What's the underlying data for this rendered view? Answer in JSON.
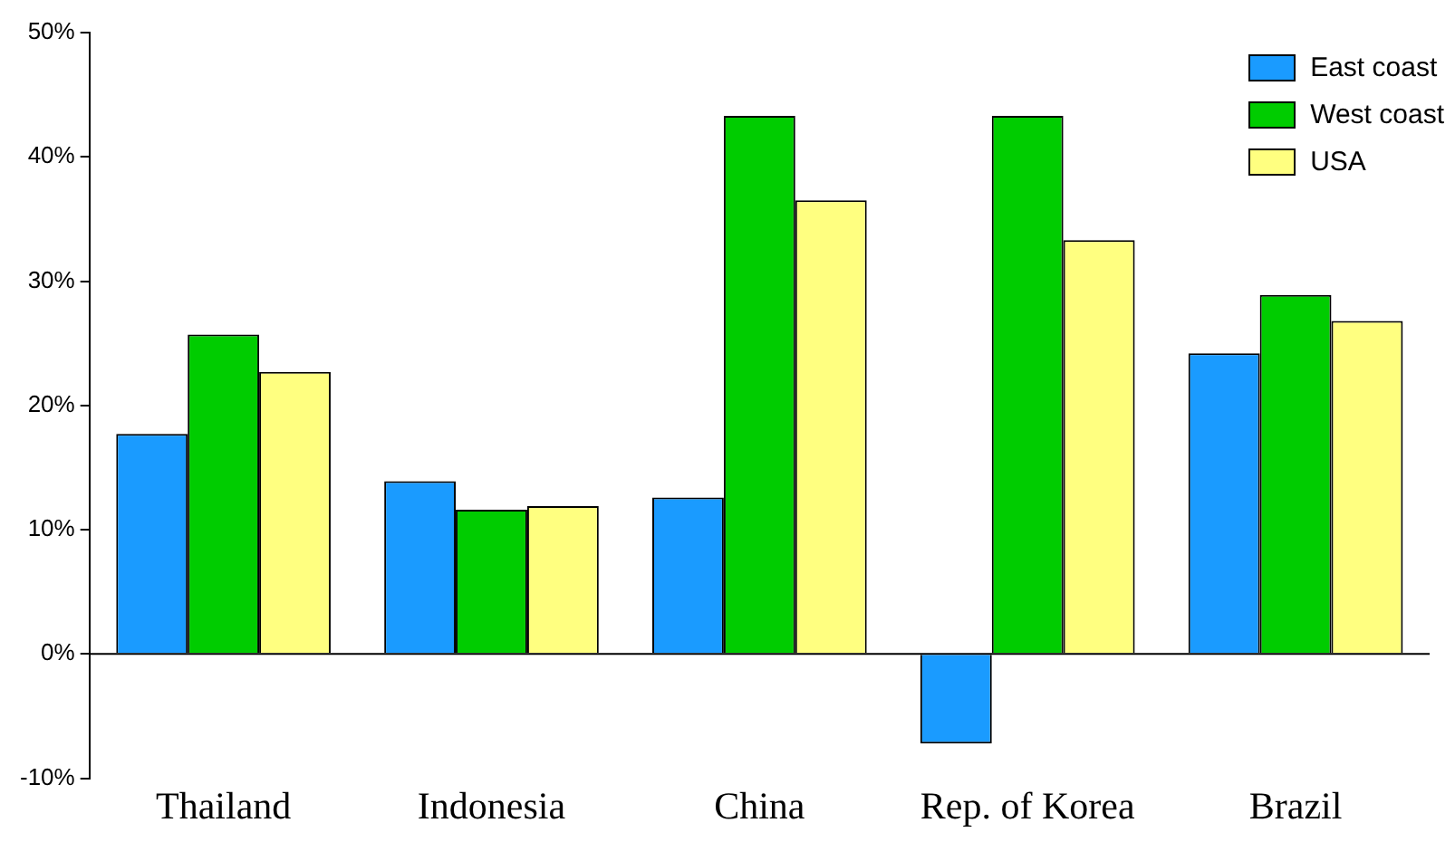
{
  "chart_data": {
    "type": "bar",
    "categories": [
      "Thailand",
      "Indonesia",
      "China",
      "Rep. of Korea",
      "Brazil"
    ],
    "series": [
      {
        "name": "East coast",
        "color": "#1a9bff",
        "values": [
          17.7,
          13.9,
          12.6,
          -7.2,
          24.2
        ]
      },
      {
        "name": "West coast",
        "color": "#00cc00",
        "values": [
          25.7,
          11.6,
          43.3,
          43.3,
          28.9
        ]
      },
      {
        "name": "USA",
        "color": "#ffff80",
        "values": [
          22.7,
          11.9,
          36.5,
          33.3,
          26.8
        ]
      }
    ],
    "ylim": [
      -10,
      50
    ],
    "yticks": [
      {
        "value": -10,
        "label": "-10%"
      },
      {
        "value": 0,
        "label": "0%"
      },
      {
        "value": 10,
        "label": "10%"
      },
      {
        "value": 20,
        "label": "20%"
      },
      {
        "value": 30,
        "label": "30%"
      },
      {
        "value": 40,
        "label": "40%"
      },
      {
        "value": 50,
        "label": "50%"
      }
    ],
    "ref_lines": [
      {
        "axis": "y",
        "value": 0,
        "color": "#000000"
      }
    ],
    "grid": false,
    "legend": "top right"
  }
}
